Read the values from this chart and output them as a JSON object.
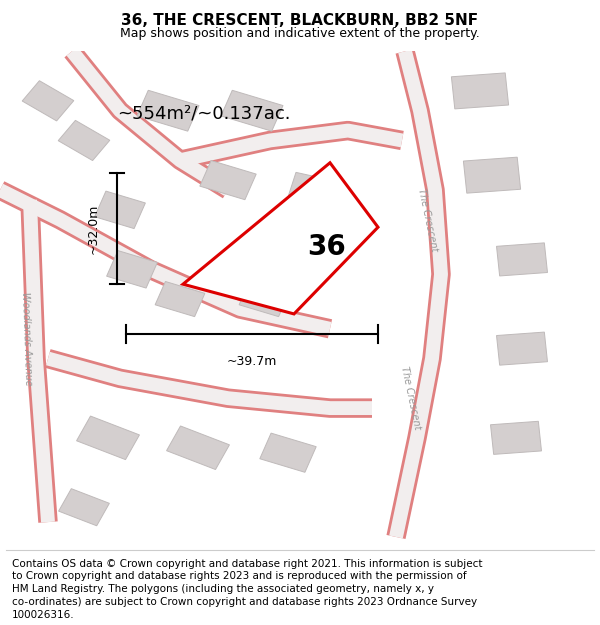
{
  "title": "36, THE CRESCENT, BLACKBURN, BB2 5NF",
  "subtitle": "Map shows position and indicative extent of the property.",
  "area_text": "~554m²/~0.137ac.",
  "label_36": "36",
  "dim_width": "~39.7m",
  "dim_height": "~32.0m",
  "footer_lines": [
    "Contains OS data © Crown copyright and database right 2021. This information is subject",
    "to Crown copyright and database rights 2023 and is reproduced with the permission of",
    "HM Land Registry. The polygons (including the associated geometry, namely x, y",
    "co-ordinates) are subject to Crown copyright and database rights 2023 Ordnance Survey",
    "100026316."
  ],
  "bg_color": "#f2eeee",
  "road_fill": "#f2eeee",
  "road_edge": "#e08080",
  "building_face": "#d4cfcf",
  "building_edge": "#bfbaba",
  "plot_edge": "#dd0000",
  "plot_face": "#ffffff",
  "title_fontsize": 11,
  "subtitle_fontsize": 9,
  "footer_fontsize": 7.5,
  "area_fontsize": 13,
  "label_fontsize": 20,
  "dim_fontsize": 9,
  "street_fontsize": 7
}
